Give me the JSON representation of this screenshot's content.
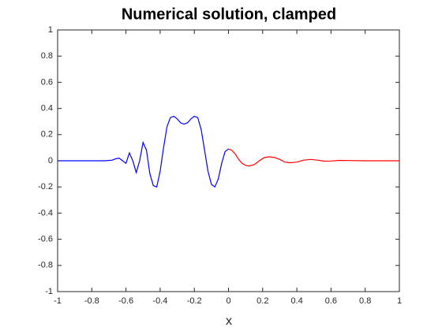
{
  "chart_data": {
    "type": "line",
    "title": "Numerical solution, clamped",
    "x_label": "x",
    "series": [
      {
        "color": "#0000ff",
        "x": [
          -1,
          -0.9,
          -0.8,
          -0.72,
          -0.68,
          -0.66,
          -0.64,
          -0.62,
          -0.6,
          -0.58,
          -0.56,
          -0.54,
          -0.52,
          -0.5,
          -0.48,
          -0.46,
          -0.44,
          -0.42,
          -0.4,
          -0.38,
          -0.36,
          -0.34,
          -0.32,
          -0.3,
          -0.28,
          -0.26,
          -0.24,
          -0.22,
          -0.2,
          -0.18,
          -0.16,
          -0.14,
          -0.12,
          -0.1,
          -0.08,
          -0.06,
          -0.04,
          -0.02,
          0
        ],
        "values": [
          0,
          0,
          0,
          0,
          0.005,
          0.015,
          0.02,
          0.0,
          -0.02,
          0.06,
          0.0,
          -0.09,
          0.0,
          0.14,
          0.08,
          -0.1,
          -0.19,
          -0.2,
          -0.08,
          0.1,
          0.26,
          0.33,
          0.34,
          0.32,
          0.29,
          0.28,
          0.29,
          0.32,
          0.34,
          0.33,
          0.24,
          0.08,
          -0.08,
          -0.18,
          -0.2,
          -0.14,
          -0.02,
          0.07,
          0.09
        ]
      },
      {
        "color": "#ff0000",
        "x": [
          0,
          0.02,
          0.04,
          0.06,
          0.08,
          0.1,
          0.12,
          0.15,
          0.18,
          0.21,
          0.24,
          0.27,
          0.3,
          0.33,
          0.36,
          0.4,
          0.44,
          0.48,
          0.52,
          0.56,
          0.6,
          0.65,
          0.7,
          0.8,
          0.9,
          1
        ],
        "values": [
          0.09,
          0.08,
          0.05,
          0.01,
          -0.02,
          -0.035,
          -0.04,
          -0.03,
          0.0,
          0.025,
          0.03,
          0.025,
          0.01,
          -0.01,
          -0.015,
          -0.01,
          0.005,
          0.01,
          0.005,
          -0.003,
          -0.002,
          0.003,
          0.002,
          0,
          0,
          0
        ]
      }
    ],
    "xlim": [
      -1,
      1
    ],
    "xticks": [
      -1,
      -0.8,
      -0.6,
      -0.4,
      -0.2,
      0,
      0.2,
      0.4,
      0.6,
      0.8,
      1
    ],
    "ylim": [
      -1,
      1
    ],
    "yticks": [
      -1,
      -0.8,
      -0.6,
      -0.4,
      -0.2,
      0,
      0.2,
      0.4,
      0.6,
      0.8,
      1
    ],
    "grid": false
  }
}
